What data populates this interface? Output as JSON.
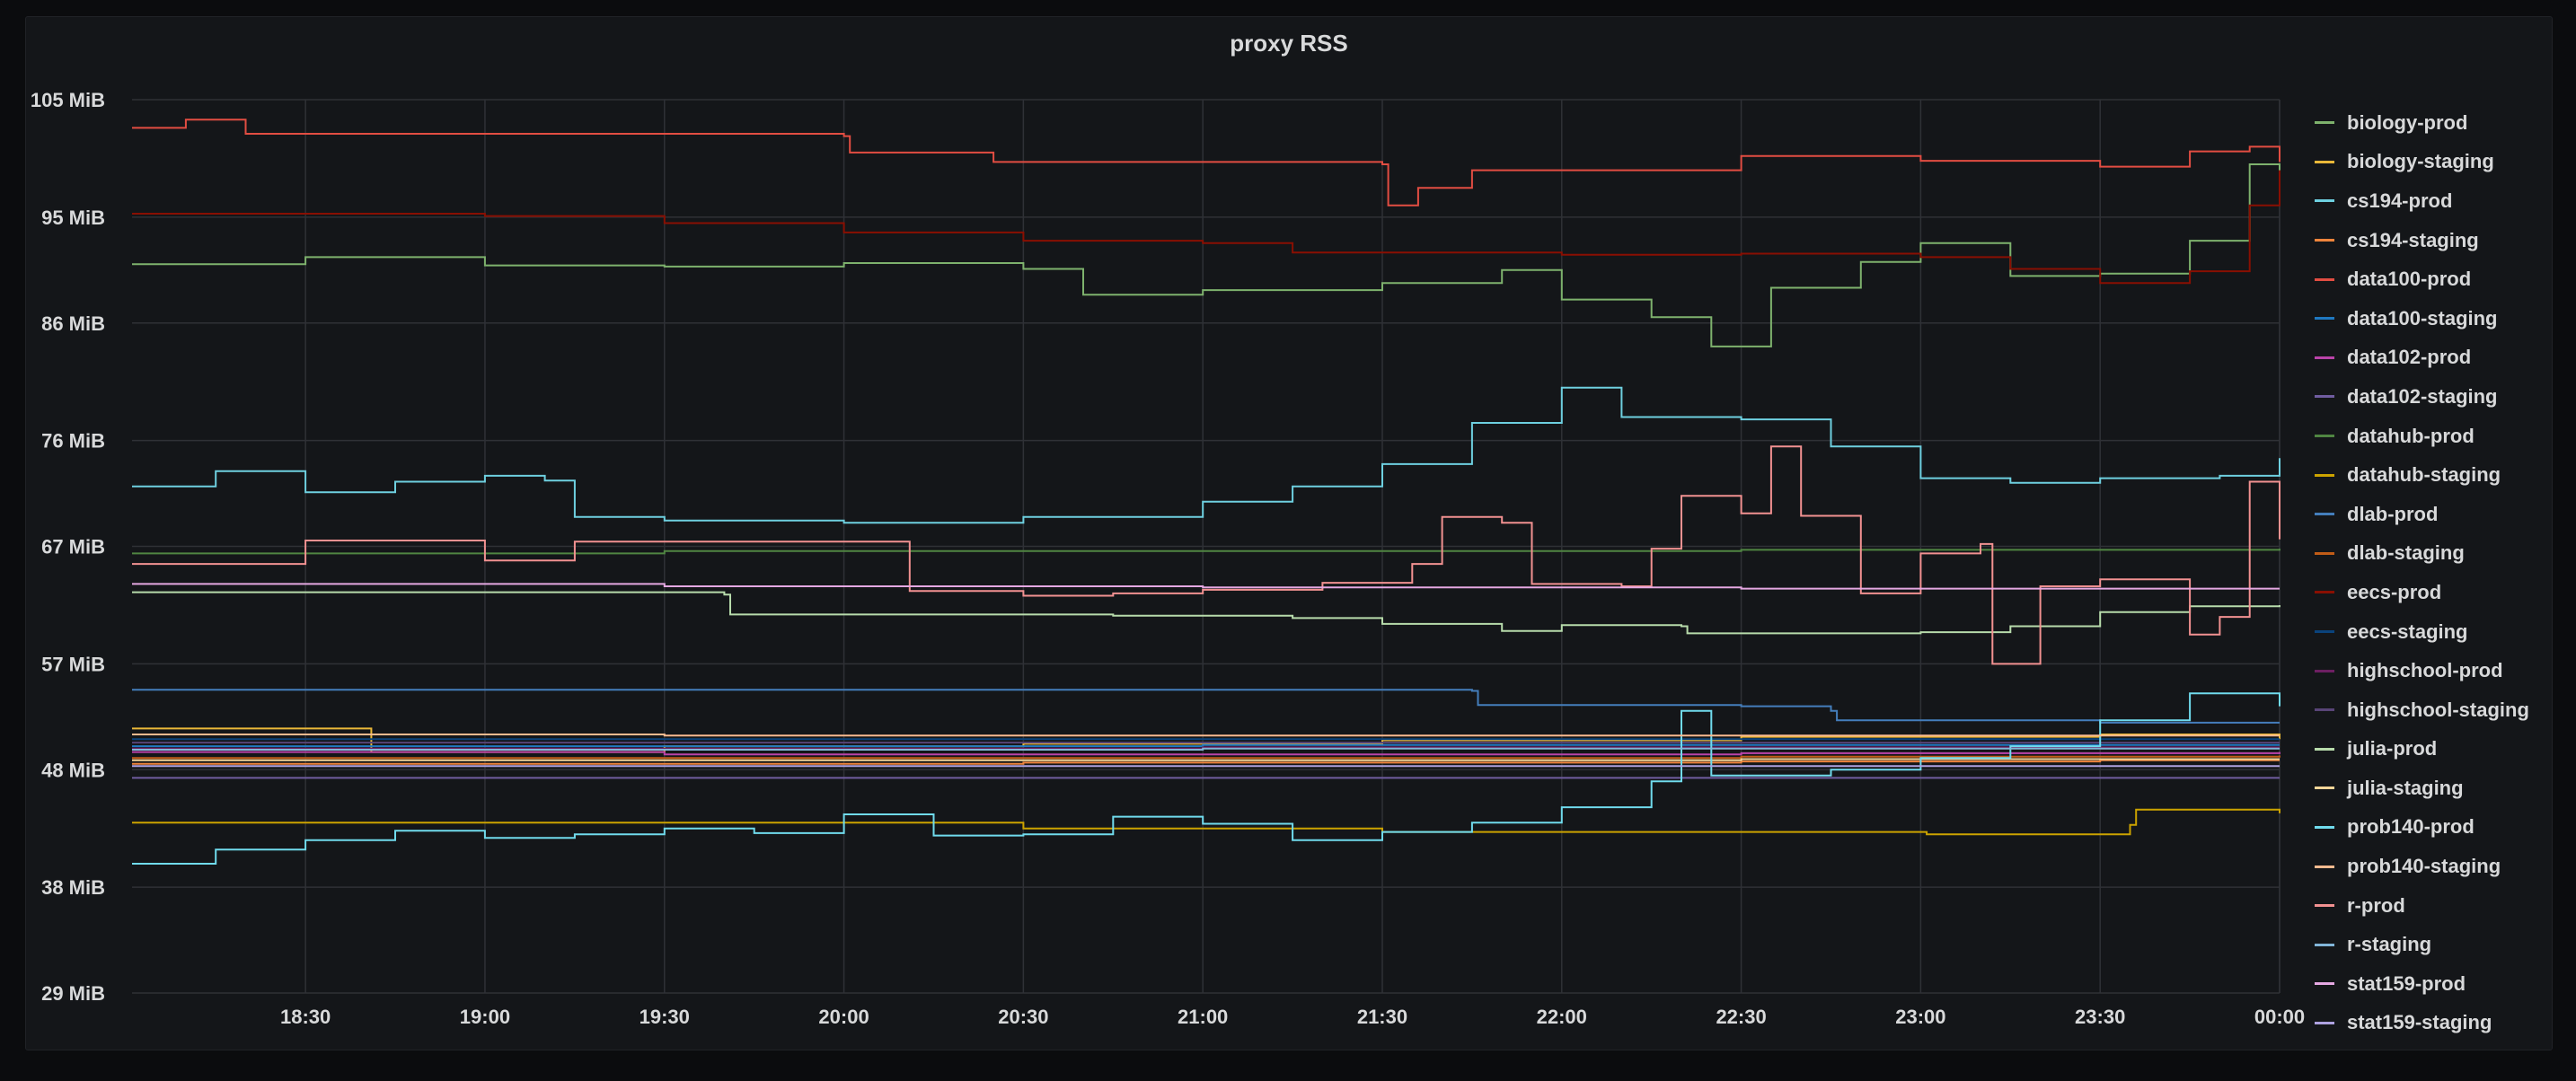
{
  "panel": {
    "title": "proxy RSS"
  },
  "chart_data": {
    "type": "line",
    "title": "proxy RSS",
    "xlabel": "",
    "ylabel": "",
    "x_ticks": [
      "18:30",
      "19:00",
      "19:30",
      "20:00",
      "20:30",
      "21:00",
      "21:30",
      "22:00",
      "22:30",
      "23:00",
      "23:30",
      "00:00"
    ],
    "xlim": [
      "18:01",
      "00:00"
    ],
    "y_ticks": [
      "29 MiB",
      "38 MiB",
      "48 MiB",
      "57 MiB",
      "67 MiB",
      "76 MiB",
      "86 MiB",
      "95 MiB",
      "105 MiB"
    ],
    "ylim": [
      29,
      105
    ],
    "grid": true,
    "legend_position": "right",
    "series": [
      {
        "name": "biology-prod",
        "color": "#7eb26d",
        "points": [
          [
            "18:01",
            91.0
          ],
          [
            "18:30",
            91.6
          ],
          [
            "19:00",
            90.9
          ],
          [
            "19:30",
            90.8
          ],
          [
            "20:00",
            91.1
          ],
          [
            "20:30",
            90.6
          ],
          [
            "20:40",
            88.4
          ],
          [
            "21:00",
            88.8
          ],
          [
            "21:30",
            89.4
          ],
          [
            "21:50",
            90.5
          ],
          [
            "22:00",
            88.0
          ],
          [
            "22:15",
            86.5
          ],
          [
            "22:25",
            84.0
          ],
          [
            "22:35",
            89.0
          ],
          [
            "22:50",
            91.2
          ],
          [
            "23:00",
            92.8
          ],
          [
            "23:15",
            90.0
          ],
          [
            "23:30",
            90.2
          ],
          [
            "23:45",
            93.0
          ],
          [
            "23:55",
            99.5
          ],
          [
            "00:00",
            98.4
          ]
        ]
      },
      {
        "name": "biology-staging",
        "color": "#eab839",
        "points": [
          [
            "18:01",
            51.5
          ],
          [
            "18:40",
            51.5
          ],
          [
            "18:41",
            49.5
          ],
          [
            "19:30",
            50.0
          ],
          [
            "20:30",
            50.2
          ],
          [
            "21:30",
            50.5
          ],
          [
            "22:30",
            50.8
          ],
          [
            "23:30",
            51.0
          ],
          [
            "00:00",
            50.6
          ]
        ]
      },
      {
        "name": "cs194-prod",
        "color": "#6ed0e0",
        "points": [
          [
            "18:01",
            72.1
          ],
          [
            "18:15",
            73.4
          ],
          [
            "18:30",
            71.6
          ],
          [
            "18:45",
            72.5
          ],
          [
            "19:00",
            73.0
          ],
          [
            "19:10",
            72.6
          ],
          [
            "19:15",
            69.5
          ],
          [
            "19:30",
            69.2
          ],
          [
            "20:00",
            69.0
          ],
          [
            "20:30",
            69.5
          ],
          [
            "21:00",
            70.8
          ],
          [
            "21:15",
            72.1
          ],
          [
            "21:30",
            74.0
          ],
          [
            "21:45",
            77.5
          ],
          [
            "22:00",
            80.5
          ],
          [
            "22:10",
            78.0
          ],
          [
            "22:30",
            77.8
          ],
          [
            "22:45",
            75.5
          ],
          [
            "23:00",
            72.8
          ],
          [
            "23:15",
            72.4
          ],
          [
            "23:30",
            72.8
          ],
          [
            "23:50",
            73.0
          ],
          [
            "00:00",
            74.5
          ]
        ]
      },
      {
        "name": "cs194-staging",
        "color": "#ef843c",
        "points": [
          [
            "18:01",
            48.5
          ],
          [
            "19:30",
            48.5
          ],
          [
            "20:30",
            48.6
          ],
          [
            "21:30",
            48.6
          ],
          [
            "22:30",
            48.7
          ],
          [
            "23:30",
            48.8
          ],
          [
            "00:00",
            48.8
          ]
        ]
      },
      {
        "name": "data100-prod",
        "color": "#e24d42",
        "points": [
          [
            "18:01",
            102.6
          ],
          [
            "18:10",
            103.3
          ],
          [
            "18:20",
            102.1
          ],
          [
            "20:00",
            101.9
          ],
          [
            "20:01",
            100.5
          ],
          [
            "20:25",
            99.7
          ],
          [
            "21:30",
            99.5
          ],
          [
            "21:31",
            96.0
          ],
          [
            "21:36",
            97.5
          ],
          [
            "21:45",
            99.0
          ],
          [
            "22:30",
            100.2
          ],
          [
            "23:00",
            99.8
          ],
          [
            "23:30",
            99.3
          ],
          [
            "23:45",
            100.6
          ],
          [
            "23:55",
            101.0
          ],
          [
            "00:00",
            99.7
          ]
        ]
      },
      {
        "name": "data100-staging",
        "color": "#1f78c1",
        "points": [
          [
            "18:01",
            50.0
          ],
          [
            "19:30",
            50.0
          ],
          [
            "21:00",
            50.1
          ],
          [
            "22:30",
            50.1
          ],
          [
            "00:00",
            50.1
          ]
        ]
      },
      {
        "name": "data102-prod",
        "color": "#ba43a9",
        "points": [
          [
            "18:01",
            49.5
          ],
          [
            "19:30",
            49.3
          ],
          [
            "21:00",
            49.3
          ],
          [
            "22:30",
            49.4
          ],
          [
            "00:00",
            49.5
          ]
        ]
      },
      {
        "name": "data102-staging",
        "color": "#705da0",
        "points": [
          [
            "18:01",
            47.3
          ],
          [
            "19:30",
            47.3
          ],
          [
            "21:00",
            47.3
          ],
          [
            "22:30",
            47.3
          ],
          [
            "00:00",
            47.3
          ]
        ]
      },
      {
        "name": "datahub-prod",
        "color": "#508642",
        "points": [
          [
            "18:01",
            66.4
          ],
          [
            "19:30",
            66.6
          ],
          [
            "21:00",
            66.6
          ],
          [
            "22:30",
            66.7
          ],
          [
            "00:00",
            66.8
          ]
        ]
      },
      {
        "name": "datahub-staging",
        "color": "#cca300",
        "points": [
          [
            "18:01",
            43.5
          ],
          [
            "19:30",
            43.5
          ],
          [
            "20:30",
            43.0
          ],
          [
            "21:30",
            42.7
          ],
          [
            "23:00",
            42.7
          ],
          [
            "23:01",
            42.5
          ],
          [
            "23:35",
            43.3
          ],
          [
            "23:36",
            44.6
          ],
          [
            "00:00",
            44.3
          ]
        ]
      },
      {
        "name": "dlab-prod",
        "color": "#447ebc",
        "points": [
          [
            "18:01",
            54.8
          ],
          [
            "19:30",
            54.8
          ],
          [
            "21:00",
            54.8
          ],
          [
            "21:45",
            54.7
          ],
          [
            "21:46",
            53.5
          ],
          [
            "22:30",
            53.4
          ],
          [
            "22:45",
            53.0
          ],
          [
            "22:46",
            52.2
          ],
          [
            "23:30",
            52.0
          ],
          [
            "00:00",
            52.0
          ]
        ]
      },
      {
        "name": "dlab-staging",
        "color": "#c15c17",
        "points": [
          [
            "18:01",
            49.0
          ],
          [
            "19:30",
            49.0
          ],
          [
            "21:00",
            49.0
          ],
          [
            "22:30",
            49.1
          ],
          [
            "00:00",
            49.2
          ]
        ]
      },
      {
        "name": "eecs-prod",
        "color": "#890f02",
        "points": [
          [
            "18:01",
            95.3
          ],
          [
            "19:00",
            95.1
          ],
          [
            "19:30",
            94.5
          ],
          [
            "20:00",
            93.7
          ],
          [
            "20:30",
            93.0
          ],
          [
            "21:00",
            92.8
          ],
          [
            "21:15",
            92.0
          ],
          [
            "22:00",
            91.8
          ],
          [
            "22:30",
            91.9
          ],
          [
            "23:00",
            91.6
          ],
          [
            "23:15",
            90.6
          ],
          [
            "23:30",
            89.4
          ],
          [
            "23:45",
            90.4
          ],
          [
            "23:55",
            96.0
          ],
          [
            "00:00",
            99.0
          ]
        ]
      },
      {
        "name": "eecs-staging",
        "color": "#0a437c",
        "points": [
          [
            "18:01",
            50.6
          ],
          [
            "19:30",
            50.6
          ],
          [
            "21:00",
            50.6
          ],
          [
            "22:30",
            50.6
          ],
          [
            "00:00",
            50.6
          ]
        ]
      },
      {
        "name": "highschool-prod",
        "color": "#6d1f62",
        "points": [
          [
            "18:01",
            49.8
          ],
          [
            "19:30",
            49.8
          ],
          [
            "21:00",
            49.9
          ],
          [
            "22:30",
            49.9
          ],
          [
            "00:00",
            49.9
          ]
        ]
      },
      {
        "name": "highschool-staging",
        "color": "#584477",
        "points": [
          [
            "18:01",
            50.3
          ],
          [
            "19:30",
            50.3
          ],
          [
            "21:00",
            50.3
          ],
          [
            "22:30",
            50.3
          ],
          [
            "00:00",
            50.3
          ]
        ]
      },
      {
        "name": "julia-prod",
        "color": "#b7dbab",
        "points": [
          [
            "18:01",
            63.1
          ],
          [
            "19:00",
            63.1
          ],
          [
            "19:40",
            62.9
          ],
          [
            "19:41",
            61.2
          ],
          [
            "20:30",
            61.2
          ],
          [
            "20:45",
            61.1
          ],
          [
            "21:15",
            60.9
          ],
          [
            "21:30",
            60.4
          ],
          [
            "21:50",
            59.8
          ],
          [
            "22:00",
            60.3
          ],
          [
            "22:20",
            60.2
          ],
          [
            "22:21",
            59.6
          ],
          [
            "23:00",
            59.7
          ],
          [
            "23:15",
            60.2
          ],
          [
            "23:30",
            61.4
          ],
          [
            "23:45",
            61.9
          ],
          [
            "00:00",
            62.0
          ]
        ]
      },
      {
        "name": "julia-staging",
        "color": "#f4d598",
        "points": [
          [
            "18:01",
            48.8
          ],
          [
            "19:30",
            48.8
          ],
          [
            "21:00",
            48.8
          ],
          [
            "22:30",
            48.9
          ],
          [
            "00:00",
            48.9
          ]
        ]
      },
      {
        "name": "prob140-prod",
        "color": "#70dbed",
        "points": [
          [
            "18:01",
            40.0
          ],
          [
            "18:15",
            41.2
          ],
          [
            "18:30",
            42.0
          ],
          [
            "18:45",
            42.8
          ],
          [
            "19:00",
            42.2
          ],
          [
            "19:15",
            42.5
          ],
          [
            "19:30",
            43.0
          ],
          [
            "19:45",
            42.6
          ],
          [
            "20:00",
            44.2
          ],
          [
            "20:15",
            42.4
          ],
          [
            "20:30",
            42.5
          ],
          [
            "20:45",
            44.0
          ],
          [
            "21:00",
            43.4
          ],
          [
            "21:15",
            42.0
          ],
          [
            "21:30",
            42.7
          ],
          [
            "21:45",
            43.5
          ],
          [
            "22:00",
            44.8
          ],
          [
            "22:15",
            47.0
          ],
          [
            "22:20",
            53.0
          ],
          [
            "22:25",
            47.5
          ],
          [
            "22:45",
            48.0
          ],
          [
            "23:00",
            49.0
          ],
          [
            "23:15",
            50.0
          ],
          [
            "23:30",
            52.2
          ],
          [
            "23:45",
            54.5
          ],
          [
            "00:00",
            53.4
          ]
        ]
      },
      {
        "name": "prob140-staging",
        "color": "#f9ba8f",
        "points": [
          [
            "18:01",
            51.0
          ],
          [
            "19:30",
            50.9
          ],
          [
            "21:00",
            50.9
          ],
          [
            "22:30",
            50.9
          ],
          [
            "00:00",
            50.9
          ]
        ]
      },
      {
        "name": "r-prod",
        "color": "#f29191",
        "points": [
          [
            "18:01",
            65.5
          ],
          [
            "18:30",
            67.5
          ],
          [
            "19:00",
            65.8
          ],
          [
            "19:15",
            67.4
          ],
          [
            "20:10",
            67.4
          ],
          [
            "20:11",
            63.2
          ],
          [
            "20:30",
            62.8
          ],
          [
            "20:45",
            63.0
          ],
          [
            "21:00",
            63.3
          ],
          [
            "21:20",
            63.9
          ],
          [
            "21:35",
            65.5
          ],
          [
            "21:40",
            69.5
          ],
          [
            "21:50",
            69.0
          ],
          [
            "21:55",
            63.8
          ],
          [
            "22:10",
            63.6
          ],
          [
            "22:15",
            66.8
          ],
          [
            "22:20",
            71.3
          ],
          [
            "22:30",
            69.8
          ],
          [
            "22:35",
            75.5
          ],
          [
            "22:40",
            69.6
          ],
          [
            "22:50",
            63.0
          ],
          [
            "23:00",
            66.4
          ],
          [
            "23:10",
            67.2
          ],
          [
            "23:12",
            57.0
          ],
          [
            "23:20",
            63.6
          ],
          [
            "23:30",
            64.2
          ],
          [
            "23:45",
            59.5
          ],
          [
            "23:50",
            61.0
          ],
          [
            "23:55",
            72.5
          ],
          [
            "00:00",
            67.6
          ]
        ]
      },
      {
        "name": "r-staging",
        "color": "#82b5d8",
        "points": [
          [
            "18:01",
            49.7
          ],
          [
            "19:30",
            49.7
          ],
          [
            "21:00",
            49.8
          ],
          [
            "22:30",
            49.8
          ],
          [
            "00:00",
            49.8
          ]
        ]
      },
      {
        "name": "stat159-prod",
        "color": "#e5a8e2",
        "points": [
          [
            "18:01",
            63.8
          ],
          [
            "19:30",
            63.6
          ],
          [
            "21:00",
            63.5
          ],
          [
            "22:30",
            63.4
          ],
          [
            "00:00",
            63.4
          ]
        ]
      },
      {
        "name": "stat159-staging",
        "color": "#aea2e0",
        "points": [
          [
            "18:01",
            48.3
          ],
          [
            "19:30",
            48.3
          ],
          [
            "21:00",
            48.3
          ],
          [
            "22:30",
            48.3
          ],
          [
            "00:00",
            48.3
          ]
        ]
      }
    ]
  }
}
